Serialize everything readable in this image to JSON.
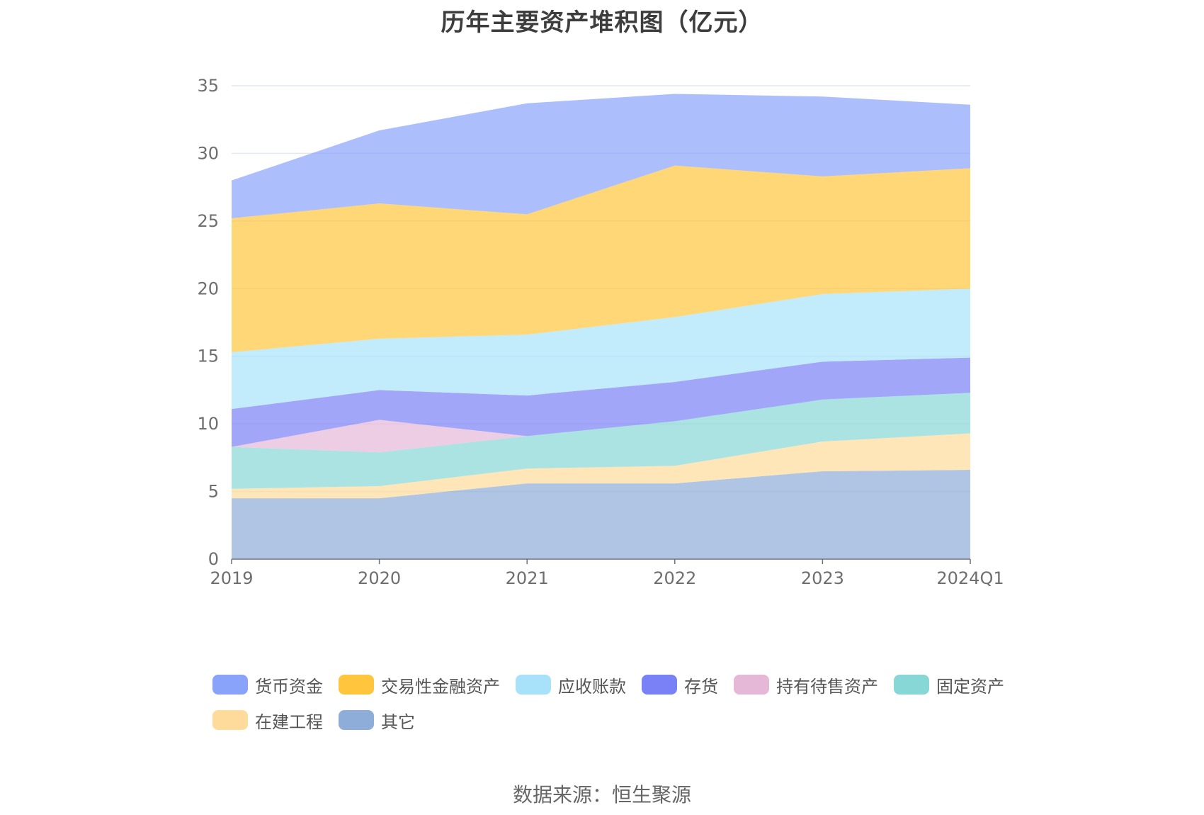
{
  "title": "历年主要资产堆积图（亿元）",
  "source": "数据来源：恒生聚源",
  "chart_data": {
    "type": "area",
    "stacked": true,
    "title": "历年主要资产堆积图（亿元）",
    "x": [
      "2019",
      "2020",
      "2021",
      "2022",
      "2023",
      "2024Q1"
    ],
    "ylim": [
      0,
      35
    ],
    "yticks": [
      0,
      5,
      10,
      15,
      20,
      25,
      30,
      35
    ],
    "grid": true,
    "legend_position": "bottom",
    "series": [
      {
        "name": "其它",
        "color": "#8fadd9",
        "values": [
          4.5,
          4.5,
          5.6,
          5.6,
          6.5,
          6.6
        ]
      },
      {
        "name": "在建工程",
        "color": "#fedb9b",
        "values": [
          0.7,
          0.9,
          1.1,
          1.3,
          2.2,
          2.7
        ]
      },
      {
        "name": "固定资产",
        "color": "#87d7d7",
        "values": [
          3.1,
          2.5,
          2.4,
          3.3,
          3.1,
          3.0
        ]
      },
      {
        "name": "持有待售资产",
        "color": "#e6b8d8",
        "values": [
          0.0,
          2.4,
          0.0,
          0.0,
          0.0,
          0.0
        ]
      },
      {
        "name": "存货",
        "color": "#7a80f5",
        "values": [
          2.8,
          2.2,
          3.0,
          2.9,
          2.8,
          2.6
        ]
      },
      {
        "name": "应收账款",
        "color": "#a8e2fa",
        "values": [
          4.2,
          3.8,
          4.5,
          4.8,
          5.0,
          5.1
        ]
      },
      {
        "name": "交易性金融资产",
        "color": "#ffc63d",
        "values": [
          9.9,
          10.0,
          8.9,
          11.2,
          8.7,
          8.9
        ]
      },
      {
        "name": "货币资金",
        "color": "#89a3fb",
        "values": [
          2.8,
          5.4,
          8.2,
          5.3,
          5.9,
          4.7
        ]
      }
    ]
  },
  "legend_order": [
    "货币资金",
    "交易性金融资产",
    "应收账款",
    "存货",
    "持有待售资产",
    "固定资产",
    "在建工程",
    "其它"
  ]
}
